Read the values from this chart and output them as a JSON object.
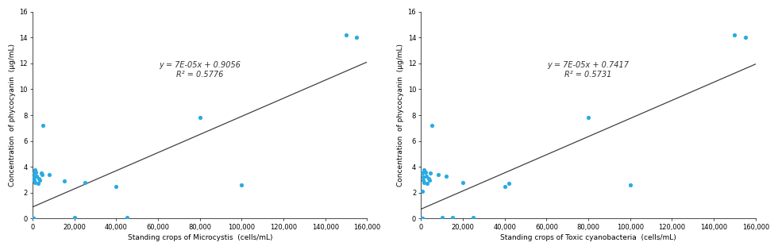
{
  "plot1": {
    "xlabel": "Standing crops of Microcystis  (cells/mL)",
    "ylabel": "Concentration  of phycocyanin  (µg/mL)",
    "equation": "y = 7E-05x + 0.9056",
    "r2": "R² = 0.5776",
    "slope": 7e-05,
    "intercept": 0.9056,
    "scatter_x": [
      100,
      200,
      300,
      400,
      500,
      600,
      700,
      800,
      1000,
      1200,
      1500,
      2000,
      2500,
      3000,
      3500,
      4000,
      4500,
      5000,
      8000,
      15000,
      20000,
      25000,
      40000,
      45000,
      80000,
      100000,
      150000,
      155000
    ],
    "scatter_y": [
      0.05,
      0.05,
      0.05,
      0.05,
      0.05,
      3.5,
      3.2,
      3.0,
      2.8,
      3.8,
      3.6,
      3.3,
      2.7,
      3.1,
      3.0,
      3.5,
      3.4,
      7.2,
      3.4,
      2.9,
      0.1,
      2.8,
      2.5,
      0.1,
      7.8,
      2.6,
      14.2,
      14.0
    ],
    "xlim": [
      0,
      160000
    ],
    "ylim": [
      0,
      16
    ],
    "xticks": [
      0,
      20000,
      40000,
      60000,
      80000,
      100000,
      120000,
      140000,
      160000
    ],
    "yticks": [
      0,
      2,
      4,
      6,
      8,
      10,
      12,
      14,
      16
    ],
    "eq_x": 80000,
    "eq_y": 11.5
  },
  "plot2": {
    "xlabel": "Standing crops of Toxic cyanobacteria  (cells/mL)",
    "ylabel": "Concentration  of phycocyanin  (µg/mL)",
    "equation": "y = 7E-05x + 0.7417",
    "r2": "R² = 0.5731",
    "slope": 7e-05,
    "intercept": 0.7417,
    "scatter_x": [
      100,
      200,
      300,
      400,
      500,
      600,
      700,
      800,
      1000,
      1200,
      1500,
      2000,
      2500,
      3000,
      3500,
      4000,
      4500,
      5000,
      8000,
      10000,
      12000,
      15000,
      20000,
      25000,
      40000,
      42000,
      80000,
      100000,
      150000,
      155000
    ],
    "scatter_y": [
      0.05,
      0.05,
      0.05,
      0.05,
      0.05,
      2.1,
      3.5,
      3.2,
      3.0,
      2.8,
      3.8,
      3.6,
      3.3,
      2.7,
      3.1,
      3.0,
      3.5,
      7.2,
      3.4,
      0.1,
      3.3,
      0.1,
      2.8,
      0.1,
      2.5,
      2.7,
      7.8,
      2.6,
      14.2,
      14.0
    ],
    "xlim": [
      0,
      160000
    ],
    "ylim": [
      0,
      16
    ],
    "xticks": [
      0,
      20000,
      40000,
      60000,
      80000,
      100000,
      120000,
      140000,
      160000
    ],
    "yticks": [
      0,
      2,
      4,
      6,
      8,
      10,
      12,
      14,
      16
    ],
    "eq_x": 80000,
    "eq_y": 11.5
  },
  "scatter_color": "#29ABE2",
  "line_color": "#404040",
  "bg_color": "#ffffff",
  "fontsize_label": 6.5,
  "fontsize_tick": 6.0,
  "fontsize_eq": 7.0
}
